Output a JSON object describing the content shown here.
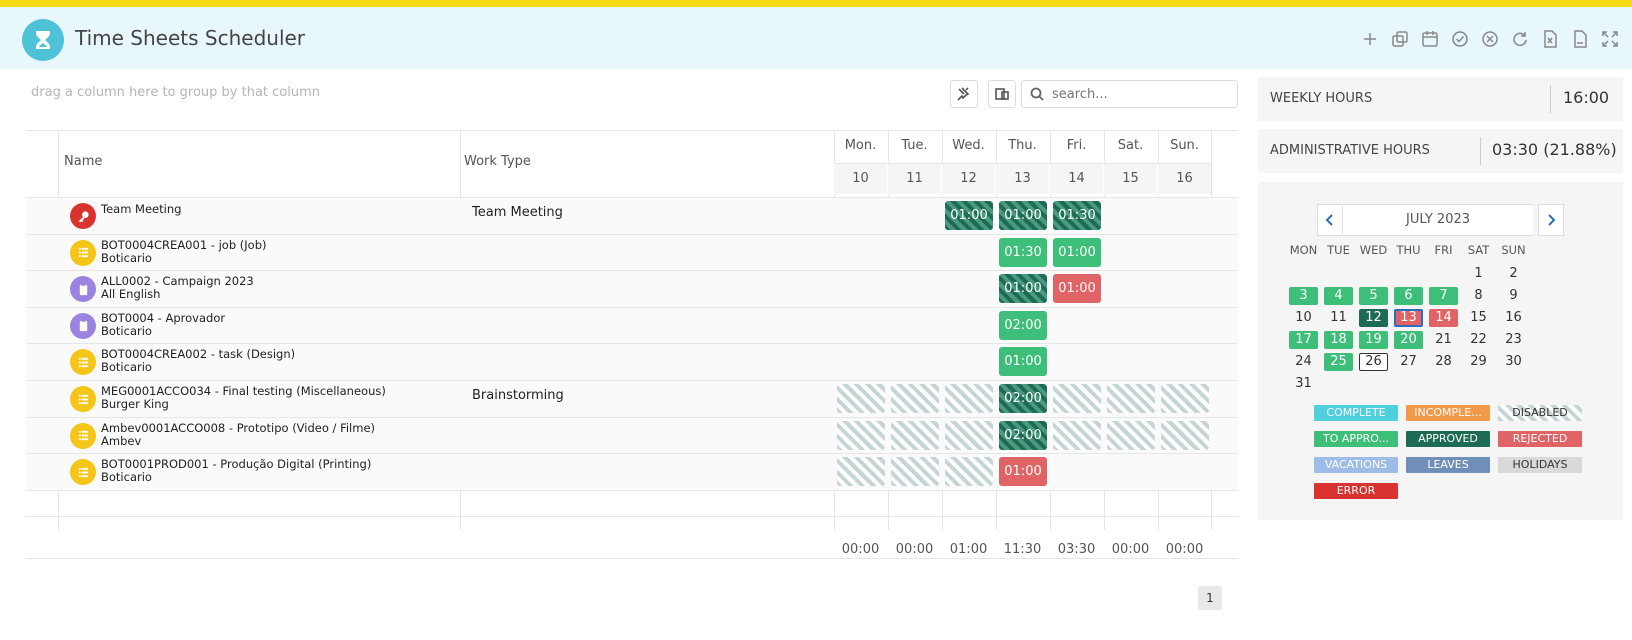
{
  "app": {
    "title": "Time Sheets Scheduler",
    "logo_icon": "hourglass-icon"
  },
  "toolbar": {
    "buttons": [
      "add-icon",
      "duplicate-icon",
      "calendar-icon",
      "approve-icon",
      "reject-icon",
      "refresh-icon",
      "excel-export-icon",
      "pdf-export-icon",
      "fullscreen-icon"
    ]
  },
  "grid": {
    "group_hint": "drag a column here to group by that column",
    "search_placeholder": "search...",
    "columns": {
      "name": "Name",
      "work_type": "Work Type"
    },
    "days": [
      {
        "label": "Mon.",
        "num": "10",
        "total": "00:00"
      },
      {
        "label": "Tue.",
        "num": "11",
        "total": "00:00"
      },
      {
        "label": "Wed.",
        "num": "12",
        "total": "01:00"
      },
      {
        "label": "Thu.",
        "num": "13",
        "total": "11:30"
      },
      {
        "label": "Fri.",
        "num": "14",
        "total": "03:30"
      },
      {
        "label": "Sat.",
        "num": "15",
        "total": "00:00"
      },
      {
        "label": "Sun.",
        "num": "16",
        "total": "00:00"
      }
    ],
    "rows": [
      {
        "title": "Team Meeting",
        "sub": "",
        "work_type": "Team Meeting",
        "icon": "key-icon",
        "icon_color": "#d9322f",
        "cells": [
          "",
          "",
          "approved:01:00",
          "approved:01:00",
          "approved:01:30",
          "",
          ""
        ]
      },
      {
        "title": "BOT0004CREA001 - job (Job)",
        "sub": "Boticario",
        "work_type": "",
        "icon": "list-icon",
        "icon_color": "#f5c518",
        "cells": [
          "",
          "",
          "",
          "green:01:30",
          "green:01:00",
          "",
          ""
        ]
      },
      {
        "title": "ALL0002 - Campaign 2023",
        "sub": "All English",
        "work_type": "",
        "icon": "clipboard-icon",
        "icon_color": "#9b84e0",
        "cells": [
          "",
          "",
          "",
          "approved:01:00",
          "red:01:00",
          "",
          ""
        ]
      },
      {
        "title": "BOT0004 - Aprovador",
        "sub": "Boticario",
        "work_type": "",
        "icon": "clipboard-icon",
        "icon_color": "#9b84e0",
        "cells": [
          "",
          "",
          "",
          "green:02:00",
          "",
          "",
          ""
        ]
      },
      {
        "title": "BOT0004CREA002 - task (Design)",
        "sub": "Boticario",
        "work_type": "",
        "icon": "list-icon",
        "icon_color": "#f5c518",
        "cells": [
          "",
          "",
          "",
          "green:01:00",
          "",
          "",
          ""
        ]
      },
      {
        "title": "MEG0001ACCO034 - Final testing (Miscellaneous)",
        "sub": "Burger King",
        "work_type": "Brainstorming",
        "icon": "list-icon",
        "icon_color": "#f5c518",
        "cells": [
          "disabled:",
          "disabled:",
          "disabled:",
          "approved:02:00",
          "disabled:",
          "disabled:",
          "disabled:"
        ]
      },
      {
        "title": "Ambev0001ACCO008 - Prototipo (Video / Filme)",
        "sub": "Ambev",
        "work_type": "",
        "icon": "list-icon",
        "icon_color": "#f5c518",
        "cells": [
          "disabled:",
          "disabled:",
          "disabled:",
          "approved:02:00",
          "disabled:",
          "disabled:",
          "disabled:"
        ]
      },
      {
        "title": "BOT0001PROD001 - Produção Digital (Printing)",
        "sub": "Boticario",
        "work_type": "",
        "icon": "list-icon",
        "icon_color": "#f5c518",
        "cells": [
          "disabled:",
          "disabled:",
          "disabled:",
          "red:01:00",
          "",
          "",
          ""
        ]
      }
    ],
    "page": "1"
  },
  "stats": {
    "weekly_label": "WEEKLY HOURS",
    "weekly_value": "16:00",
    "admin_label": "ADMINISTRATIVE HOURS",
    "admin_value": "03:30 (21.88%)"
  },
  "calendar": {
    "title": "JULY 2023",
    "dow": [
      "MON",
      "TUE",
      "WED",
      "THU",
      "FRI",
      "SAT",
      "SUN"
    ],
    "weeks": [
      [
        [
          "",
          ""
        ],
        [
          "",
          ""
        ],
        [
          "",
          ""
        ],
        [
          "",
          ""
        ],
        [
          "",
          ""
        ],
        [
          "1",
          ""
        ],
        [
          "2",
          ""
        ]
      ],
      [
        [
          "3",
          "green"
        ],
        [
          "4",
          "green"
        ],
        [
          "5",
          "green"
        ],
        [
          "6",
          "green"
        ],
        [
          "7",
          "green"
        ],
        [
          "8",
          ""
        ],
        [
          "9",
          ""
        ]
      ],
      [
        [
          "10",
          ""
        ],
        [
          "11",
          ""
        ],
        [
          "12",
          "dark"
        ],
        [
          "13",
          "today"
        ],
        [
          "14",
          "red"
        ],
        [
          "15",
          ""
        ],
        [
          "16",
          ""
        ]
      ],
      [
        [
          "17",
          "green"
        ],
        [
          "18",
          "green"
        ],
        [
          "19",
          "green"
        ],
        [
          "20",
          "green"
        ],
        [
          "21",
          ""
        ],
        [
          "22",
          ""
        ],
        [
          "23",
          ""
        ]
      ],
      [
        [
          "24",
          ""
        ],
        [
          "25",
          "green"
        ],
        [
          "26",
          "outline"
        ],
        [
          "27",
          ""
        ],
        [
          "28",
          ""
        ],
        [
          "29",
          ""
        ],
        [
          "30",
          ""
        ]
      ],
      [
        [
          "31",
          ""
        ],
        [
          "",
          ""
        ],
        [
          "",
          ""
        ],
        [
          "",
          ""
        ],
        [
          "",
          ""
        ],
        [
          "",
          ""
        ],
        [
          "",
          ""
        ]
      ]
    ]
  },
  "legend": [
    {
      "label": "COMPLETE",
      "color": "#4fd0dc"
    },
    {
      "label": "INCOMPLE...",
      "color": "#f39a4a"
    },
    {
      "label": "DISABLED",
      "color": "striped"
    },
    {
      "label": "TO APPRO...",
      "color": "#3dbf7a"
    },
    {
      "label": "APPROVED",
      "color": "#1e6b55"
    },
    {
      "label": "REJECTED",
      "color": "#e06466"
    },
    {
      "label": "VACATIONS",
      "color": "#9dbde8"
    },
    {
      "label": "LEAVES",
      "color": "#6f8fb8"
    },
    {
      "label": "HOLIDAYS",
      "color": "#d9d9d9"
    },
    {
      "label": "ERROR",
      "color": "#d9322f"
    }
  ]
}
